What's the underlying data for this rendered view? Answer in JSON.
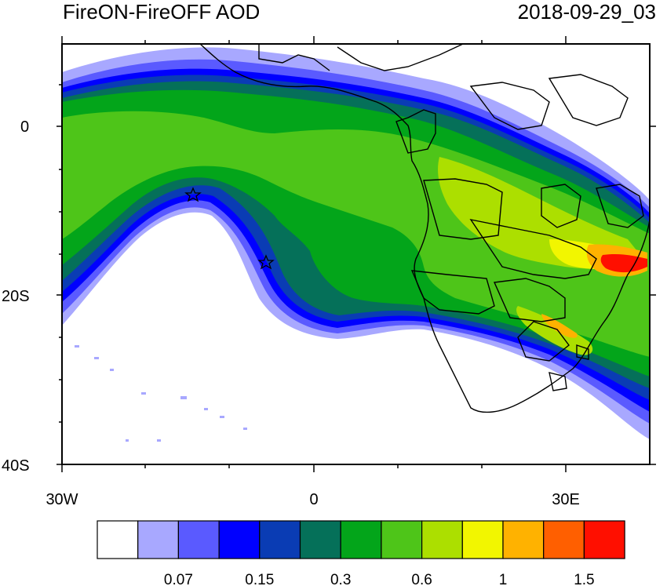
{
  "header": {
    "title": "FireON-FireOFF AOD",
    "timestamp": "2018-09-29_03"
  },
  "axes": {
    "y_ticks": [
      {
        "label": "0",
        "lat": 0
      },
      {
        "label": "20S",
        "lat": -20
      },
      {
        "label": "40S",
        "lat": -40
      }
    ],
    "x_ticks": [
      {
        "label": "30W",
        "lon": -30
      },
      {
        "label": "0",
        "lon": 0
      },
      {
        "label": "30E",
        "lon": 30
      }
    ]
  },
  "colorbar": {
    "colors": [
      "#ffffff",
      "#a8a8ff",
      "#5a5aff",
      "#0000ff",
      "#0a3cb4",
      "#057059",
      "#03a51a",
      "#4ec519",
      "#acdf00",
      "#f2f600",
      "#ffb200",
      "#ff5f00",
      "#ff0f00"
    ],
    "labels": [
      "0.07",
      "0.15",
      "0.3",
      "0.6",
      "1",
      "1.5"
    ]
  },
  "palette": {
    "deep": "#0000ff",
    "low": "#a8a8ff",
    "teal": "#057059",
    "green": "#03a51a",
    "lightgreen": "#4ec519",
    "lime": "#acdf00",
    "yellow": "#f2f600",
    "orange": "#ffb200",
    "red": "#ff0f00"
  }
}
